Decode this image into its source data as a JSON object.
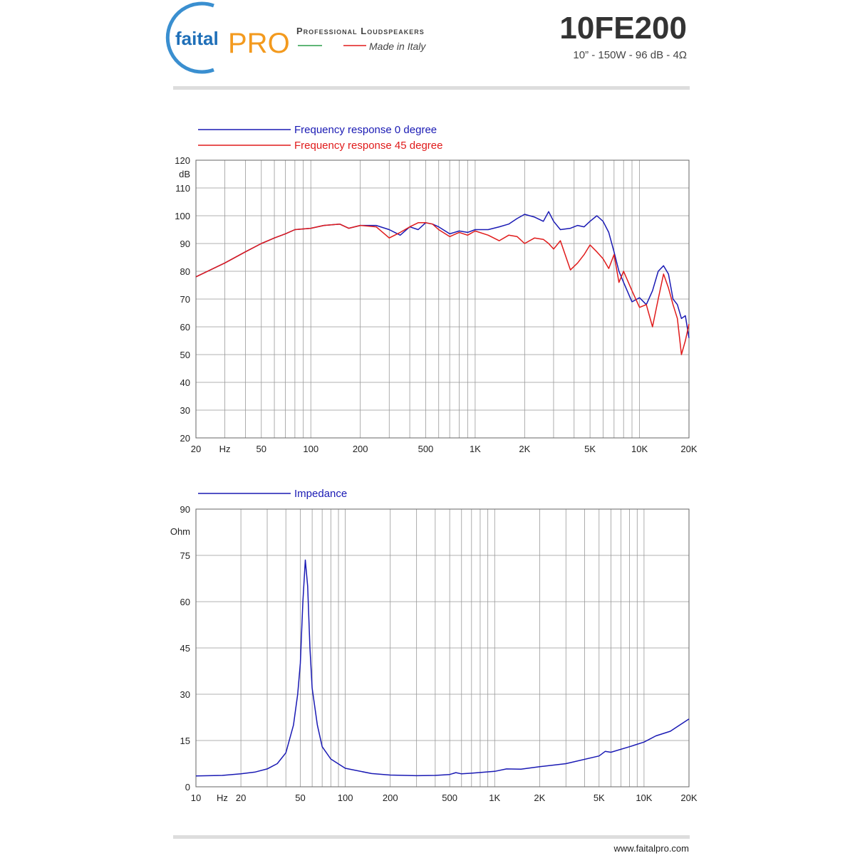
{
  "header": {
    "brand": "faital",
    "brand_accent": "PRO",
    "tagline": "Professional Loudspeakers",
    "made_in": "Made in Italy",
    "title": "10FE200",
    "subtitle": "10” - 150W - 96 dB - 4Ω"
  },
  "footer": {
    "url": "www.faitalpro.com"
  },
  "chart_data": [
    {
      "type": "line",
      "xscale": "log",
      "ylabel": "dB",
      "xlabel": "Hz",
      "xlabel_at": 30,
      "xlim": [
        20,
        20000
      ],
      "ylim": [
        20,
        120
      ],
      "xticks": [
        20,
        50,
        100,
        200,
        500,
        {
          "value": 1000,
          "label": "1K"
        },
        {
          "value": 2000,
          "label": "2K"
        },
        {
          "value": 5000,
          "label": "5K"
        },
        {
          "value": 10000,
          "label": "10K"
        },
        {
          "value": 20000,
          "label": "20K"
        }
      ],
      "yticks": [
        20,
        30,
        40,
        50,
        60,
        70,
        80,
        90,
        100,
        110,
        120
      ],
      "xgrid": [
        20,
        30,
        40,
        50,
        60,
        70,
        80,
        90,
        100,
        200,
        300,
        400,
        500,
        600,
        700,
        800,
        900,
        1000,
        2000,
        3000,
        4000,
        5000,
        6000,
        7000,
        8000,
        9000,
        10000,
        20000
      ],
      "grid": true,
      "legend": "top-left",
      "x": [
        20,
        30,
        40,
        50,
        60,
        70,
        80,
        100,
        120,
        150,
        170,
        200,
        250,
        300,
        350,
        400,
        450,
        500,
        550,
        600,
        700,
        800,
        900,
        1000,
        1200,
        1400,
        1600,
        1800,
        2000,
        2300,
        2600,
        2800,
        3000,
        3300,
        3800,
        4200,
        4600,
        5000,
        5500,
        6000,
        6500,
        7000,
        7500,
        8000,
        9000,
        10000,
        11000,
        12000,
        13000,
        14000,
        15000,
        16000,
        17000,
        18000,
        19000,
        20000
      ],
      "series": [
        {
          "name": "Frequency response 0 degree",
          "color": "#1a1ab4",
          "values": [
            78,
            83,
            87,
            90,
            92,
            93.5,
            95,
            95.5,
            96.5,
            97,
            95.5,
            96.5,
            96.5,
            95,
            93,
            96,
            95,
            97.5,
            97,
            96,
            93.5,
            94.5,
            94,
            95,
            95,
            96,
            97,
            99,
            100.5,
            99.5,
            98,
            101.5,
            98,
            95,
            95.5,
            96.5,
            96,
            98,
            100,
            98,
            94,
            87,
            80,
            76,
            69,
            70.5,
            68,
            73,
            80,
            82,
            79,
            70,
            68,
            63,
            64,
            56
          ]
        },
        {
          "name": "Frequency response 45 degree",
          "color": "#e01b1b",
          "values": [
            78,
            83,
            87,
            90,
            92,
            93.5,
            95,
            95.5,
            96.5,
            97,
            95.5,
            96.5,
            96,
            92,
            94,
            96,
            97.5,
            97.5,
            97,
            95,
            92.5,
            94,
            93,
            94.5,
            93,
            91,
            93,
            92.5,
            90,
            92,
            91.5,
            90,
            88,
            91,
            80.5,
            83,
            86,
            89.5,
            87,
            84.5,
            81,
            86,
            76,
            80,
            73,
            67,
            68,
            60,
            70,
            79,
            74,
            68,
            63,
            50,
            55,
            61
          ]
        }
      ]
    },
    {
      "type": "line",
      "xscale": "log",
      "ylabel": "Ohm",
      "xlabel": "Hz",
      "xlabel_at": 15,
      "xlim": [
        10,
        20000
      ],
      "ylim": [
        0,
        90
      ],
      "xticks": [
        10,
        20,
        50,
        100,
        200,
        500,
        {
          "value": 1000,
          "label": "1K"
        },
        {
          "value": 2000,
          "label": "2K"
        },
        {
          "value": 5000,
          "label": "5K"
        },
        {
          "value": 10000,
          "label": "10K"
        },
        {
          "value": 20000,
          "label": "20K"
        }
      ],
      "yticks": [
        0,
        15,
        30,
        45,
        60,
        75,
        90
      ],
      "xgrid": [
        10,
        20,
        30,
        40,
        50,
        60,
        70,
        80,
        90,
        100,
        200,
        300,
        400,
        500,
        600,
        700,
        800,
        900,
        1000,
        2000,
        3000,
        4000,
        5000,
        6000,
        7000,
        8000,
        9000,
        10000,
        20000
      ],
      "grid": true,
      "legend": "top-left",
      "x": [
        10,
        15,
        20,
        25,
        30,
        35,
        40,
        45,
        48,
        50,
        52,
        54,
        56,
        58,
        60,
        65,
        70,
        80,
        100,
        150,
        200,
        300,
        400,
        500,
        550,
        600,
        700,
        1000,
        1200,
        1500,
        2000,
        3000,
        5000,
        5500,
        6000,
        8000,
        10000,
        12000,
        15000,
        20000
      ],
      "series": [
        {
          "name": "Impedance",
          "color": "#1a1ab4",
          "values": [
            3.5,
            3.7,
            4.2,
            4.8,
            5.8,
            7.5,
            11,
            20,
            30,
            40,
            60,
            73.5,
            65,
            45,
            32,
            20,
            13,
            9,
            6,
            4.3,
            3.8,
            3.6,
            3.7,
            4,
            4.6,
            4.2,
            4.4,
            5,
            5.8,
            5.7,
            6.5,
            7.5,
            10,
            11.5,
            11.2,
            13,
            14.5,
            16.5,
            18,
            22
          ]
        }
      ]
    }
  ]
}
